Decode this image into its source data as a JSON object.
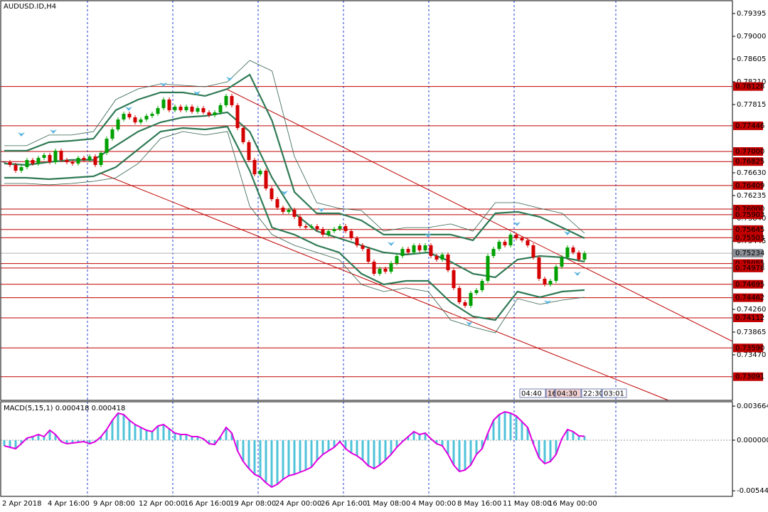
{
  "chart_data": [
    {
      "type": "candlestick",
      "title": "AUDUSD.ID,H4",
      "x_labels": [
        "2 Apr 2018",
        "4 Apr 16:00",
        "9 Apr 08:00",
        "12 Apr 00:00",
        "16 Apr 16:00",
        "19 Apr 08:00",
        "24 Apr 00:00",
        "26 Apr 16:00",
        "1 May 08:00",
        "4 May 00:00",
        "8 May 16:00",
        "11 May 08:00",
        "16 May 00:00"
      ],
      "close": [
        0.76815,
        0.76766,
        0.76667,
        0.76729,
        0.76852,
        0.7679,
        0.76889,
        0.76939,
        0.76815,
        0.77013,
        0.76852,
        0.76815,
        0.7679,
        0.76889,
        0.76852,
        0.76914,
        0.76766,
        0.76976,
        0.77222,
        0.77383,
        0.77556,
        0.77654,
        0.77593,
        0.77506,
        0.77556,
        0.77617,
        0.77654,
        0.77753,
        0.77901,
        0.77716,
        0.77778,
        0.77716,
        0.77778,
        0.77691,
        0.77753,
        0.77679,
        0.7763,
        0.77679,
        0.77803,
        0.77963,
        0.77803,
        0.77408,
        0.77161,
        0.76852,
        0.76605,
        0.76667,
        0.76358,
        0.76173,
        0.76025,
        0.75951,
        0.75988,
        0.75865,
        0.75704,
        0.7568,
        0.75704,
        0.75655,
        0.75556,
        0.75618,
        0.75655,
        0.75704,
        0.75618,
        0.75494,
        0.75371,
        0.75309,
        0.75087,
        0.74877,
        0.74964,
        0.74914,
        0.75062,
        0.75186,
        0.75309,
        0.75247,
        0.75371,
        0.75284,
        0.75371,
        0.75186,
        0.75124,
        0.7521,
        0.74939,
        0.7463,
        0.74383,
        0.74322,
        0.74544,
        0.74593,
        0.74754,
        0.75186,
        0.75309,
        0.75433,
        0.75371,
        0.75556,
        0.75494,
        0.75457,
        0.75371,
        0.75161,
        0.74791,
        0.74692,
        0.74754,
        0.75001,
        0.75161,
        0.75334,
        0.75247,
        0.75124,
        0.75234
      ],
      "up_color": "#00a000",
      "down_color": "#d40000",
      "bands": [
        {
          "color": "#2f7a55",
          "width": 2.2,
          "values": [
            0.76791,
            0.76766,
            0.76816,
            0.76853,
            0.76853,
            0.771,
            0.77346,
            0.77507,
            0.77593,
            0.77618,
            0.7768,
            0.77346,
            0.76544,
            0.75927,
            0.75618,
            0.75495,
            0.75371,
            0.75248,
            0.75211,
            0.75248,
            0.75087,
            0.74878,
            0.74816,
            0.75124,
            0.75186,
            0.75162,
            0.75087
          ]
        },
        {
          "color": "#2f7a55",
          "width": 2.2,
          "values": [
            0.77013,
            0.77013,
            0.77161,
            0.77186,
            0.77223,
            0.77717,
            0.77902,
            0.78025,
            0.78025,
            0.77964,
            0.78087,
            0.78334,
            0.77532,
            0.76297,
            0.75927,
            0.75927,
            0.75803,
            0.75557,
            0.75557,
            0.75557,
            0.75557,
            0.75458,
            0.75927,
            0.75952,
            0.75865,
            0.7568,
            0.75495
          ]
        },
        {
          "color": "#2f7a55",
          "width": 2.2,
          "values": [
            0.76544,
            0.76544,
            0.76519,
            0.76544,
            0.76569,
            0.76729,
            0.77038,
            0.77346,
            0.77408,
            0.77383,
            0.77433,
            0.76667,
            0.7568,
            0.75557,
            0.75371,
            0.75248,
            0.74878,
            0.74692,
            0.74754,
            0.74754,
            0.74384,
            0.74137,
            0.74075,
            0.74569,
            0.7447,
            0.74569,
            0.74594
          ]
        },
        {
          "color": "#2f6048",
          "width": 0.8,
          "values": [
            0.771,
            0.771,
            0.77285,
            0.77285,
            0.77346,
            0.77902,
            0.78087,
            0.78173,
            0.78149,
            0.78124,
            0.7821,
            0.78581,
            0.78396,
            0.76914,
            0.76112,
            0.76013,
            0.75976,
            0.75618,
            0.7568,
            0.7568,
            0.75742,
            0.75618,
            0.76112,
            0.76112,
            0.76013,
            0.75927,
            0.75581
          ]
        },
        {
          "color": "#2f6048",
          "width": 0.8,
          "values": [
            0.76445,
            0.76445,
            0.76421,
            0.76445,
            0.76482,
            0.76544,
            0.76791,
            0.77223,
            0.77346,
            0.77285,
            0.77346,
            0.7605,
            0.75557,
            0.75371,
            0.75248,
            0.75124,
            0.74692,
            0.74569,
            0.74631,
            0.74569,
            0.74075,
            0.73952,
            0.73853,
            0.74446,
            0.74347,
            0.74421,
            0.7447
          ]
        }
      ],
      "ylim": [
        0.7268,
        0.79605
      ],
      "yticks": [
        0.79395,
        {
          "value": 0.79,
          "label": "0.79000"
        },
        0.78605,
        {
          "value": 0.7821,
          "label": "0.78210"
        },
        0.77815,
        {
          "value": 0.7663,
          "label": "0.76630"
        },
        0.76235,
        {
          "value": 0.7584,
          "label": "0.75840"
        },
        0.75445,
        {
          "value": 0.7426,
          "label": "0.74260"
        },
        0.73865,
        {
          "value": 0.7347,
          "label": "0.73470"
        }
      ],
      "levels": {
        "color": "#c00000",
        "values": [
          0.78128,
          0.77446,
          {
            "value": 0.77,
            "label": "0.77000"
          },
          0.76825,
          0.76409,
          {
            "value": 0.76,
            "label": "0.76000"
          },
          0.75903,
          0.75645,
          0.75503,
          0.75055,
          0.74978,
          0.74695,
          0.74462,
          0.74112,
          {
            "value": 0.7359,
            "label": "0.73590"
          },
          0.73091
        ]
      },
      "last_price": 0.75234,
      "time_boxes": [
        "04:40",
        "16",
        "04:30",
        "22:30",
        "03:01"
      ]
    },
    {
      "type": "macd",
      "title": "MACD(5,15,1) 0.000418 0.000418",
      "values": [
        -0.000612,
        -0.000765,
        -0.000918,
        -0.000383,
        0.00023,
        0.000383,
        0.000612,
        0.000383,
        0.001071,
        0.000612,
        -0.000153,
        -0.000383,
        -0.000306,
        -0.00023,
        -0.000153,
        -0.000383,
        -0.000153,
        0.000383,
        0.001148,
        0.002142,
        0.002907,
        0.002754,
        0.002142,
        0.001683,
        0.001377,
        0.001071,
        0.000918,
        0.00153,
        0.001683,
        0.001224,
        0.000765,
        0.000612,
        0.000612,
        0.000383,
        0.000383,
        0.000153,
        -0.000383,
        -0.000459,
        0.000383,
        0.001377,
        0.000765,
        -0.001148,
        -0.002295,
        -0.00306,
        -0.003672,
        -0.003978,
        -0.00459,
        -0.005049,
        -0.004743,
        -0.004208,
        -0.003825,
        -0.003672,
        -0.003443,
        -0.003213,
        -0.002907,
        -0.002142,
        -0.00153,
        -0.001148,
        -0.000765,
        -0.000153,
        -0.000918,
        -0.001377,
        -0.001683,
        -0.002142,
        -0.002754,
        -0.00306,
        -0.002678,
        -0.002142,
        -0.00153,
        -0.000765,
        -0.000153,
        0.000383,
        0.000918,
        0.000612,
        0.000765,
        0.000153,
        -0.000383,
        -0.000612,
        -0.00153,
        -0.002678,
        -0.003366,
        -0.003213,
        -0.002678,
        -0.00153,
        -0.000918,
        0.000765,
        0.002142,
        0.002754,
        0.00306,
        0.002907,
        0.002601,
        0.001989,
        0.001377,
        -0.000383,
        -0.001913,
        -0.002525,
        -0.002295,
        -0.00153,
        0.000153,
        0.001148,
        0.000918,
        0.000459,
        0.000418
      ],
      "bar_color": "#4fc3d9",
      "line_color": "#e000e0",
      "ylim": [
        -0.00604,
        0.00413
      ],
      "yticks": [
        0.003664,
        {
          "value": 0,
          "label": "0.000000"
        },
        -0.005445
      ]
    }
  ]
}
